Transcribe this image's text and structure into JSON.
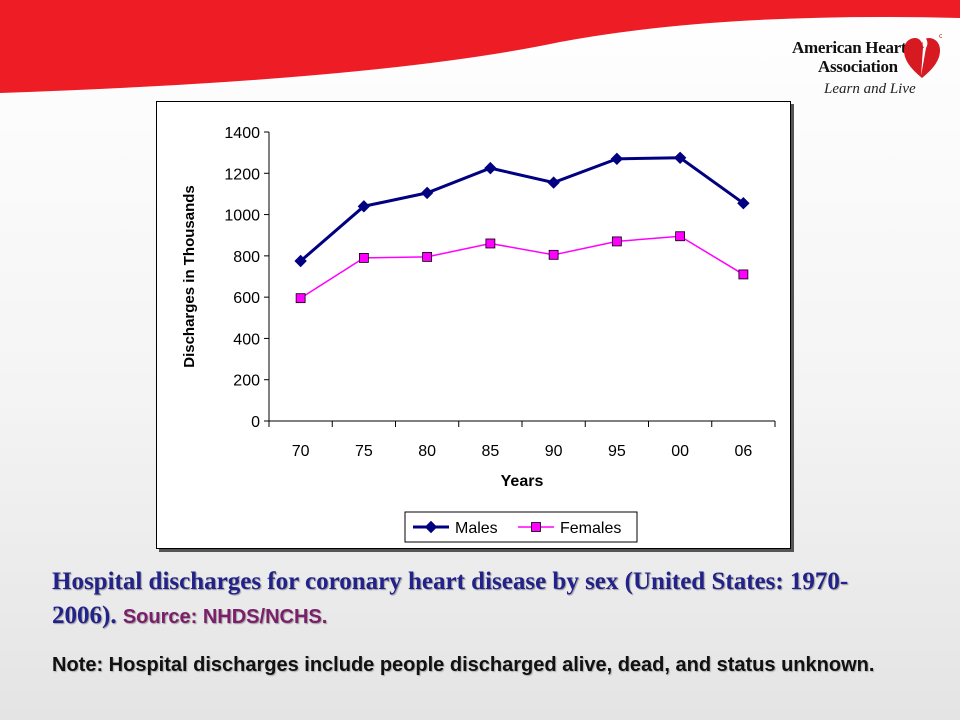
{
  "brand": {
    "org_line1": "American Heart",
    "org_line2": "Association",
    "tagline": "Learn and Live",
    "colors": {
      "banner": "#ee1c25",
      "logo_heart": "#d71921"
    }
  },
  "chart_data": {
    "type": "line",
    "categories": [
      "70",
      "75",
      "80",
      "85",
      "90",
      "95",
      "00",
      "06"
    ],
    "series": [
      {
        "name": "Males",
        "values": [
          775,
          1040,
          1105,
          1225,
          1155,
          1270,
          1275,
          1055
        ],
        "color": "#000080",
        "marker": "diamond"
      },
      {
        "name": "Females",
        "values": [
          595,
          790,
          795,
          860,
          805,
          870,
          895,
          710
        ],
        "color": "#ff00ff",
        "marker": "square"
      }
    ],
    "xlabel": "Years",
    "ylabel": "Discharges in Thousands",
    "ylim": [
      0,
      1400
    ],
    "yticks": [
      0,
      200,
      400,
      600,
      800,
      1000,
      1200,
      1400
    ],
    "grid": false,
    "legend": "bottom"
  },
  "caption": {
    "title": "Hospital discharges for coronary heart disease by sex (United States: 1970-2006).",
    "source": "Source: NHDS/NCHS."
  },
  "note": "Note: Hospital discharges include people discharged alive, dead, and status unknown."
}
